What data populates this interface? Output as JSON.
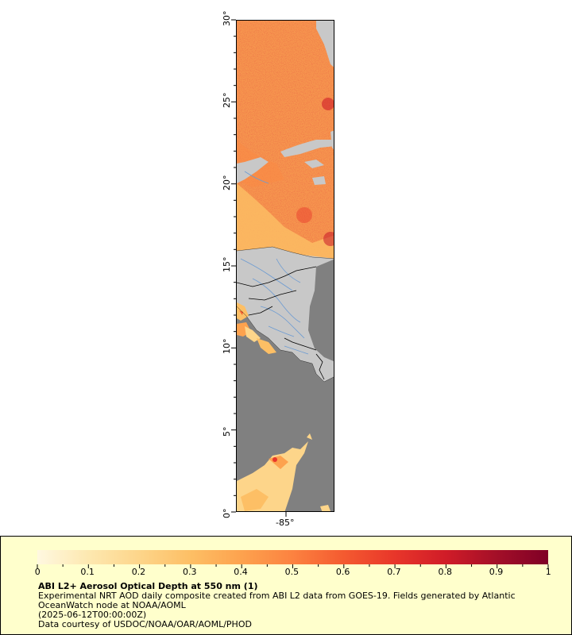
{
  "map": {
    "y_axis_labels": [
      "0°",
      "5°",
      "10°",
      "15°",
      "20°",
      "25°",
      "30°"
    ],
    "x_axis_labels": [
      "-85°"
    ],
    "colors": {
      "no_data": "#808080",
      "land": "#c8c8c8",
      "borders": "#000000",
      "rivers": "#6c9bd2"
    }
  },
  "colorbar": {
    "tick_labels": [
      "0",
      "0.1",
      "0.2",
      "0.3",
      "0.4",
      "0.5",
      "0.6",
      "0.7",
      "0.8",
      "0.9",
      "1"
    ],
    "range": [
      0,
      1
    ],
    "color_stops": [
      "#fff8e0",
      "#fde8b0",
      "#fdd58a",
      "#fdbf65",
      "#fda24e",
      "#fc8240",
      "#f45a30",
      "#e8362a",
      "#d01c28",
      "#a30f28",
      "#7f0026"
    ]
  },
  "legend": {
    "title": "ABI L2+ Aerosol Optical Depth at 550 nm (1)",
    "line1": "Experimental NRT AOD daily composite created from ABI L2 data from GOES-19. Fields generated by Atlantic",
    "line2": "OceanWatch node at NOAA/AOML",
    "line3": "(2025-06-12T00:00:00Z)",
    "line4": "Data courtesy of USDOC/NOAA/OAR/AOML/PHOD"
  }
}
